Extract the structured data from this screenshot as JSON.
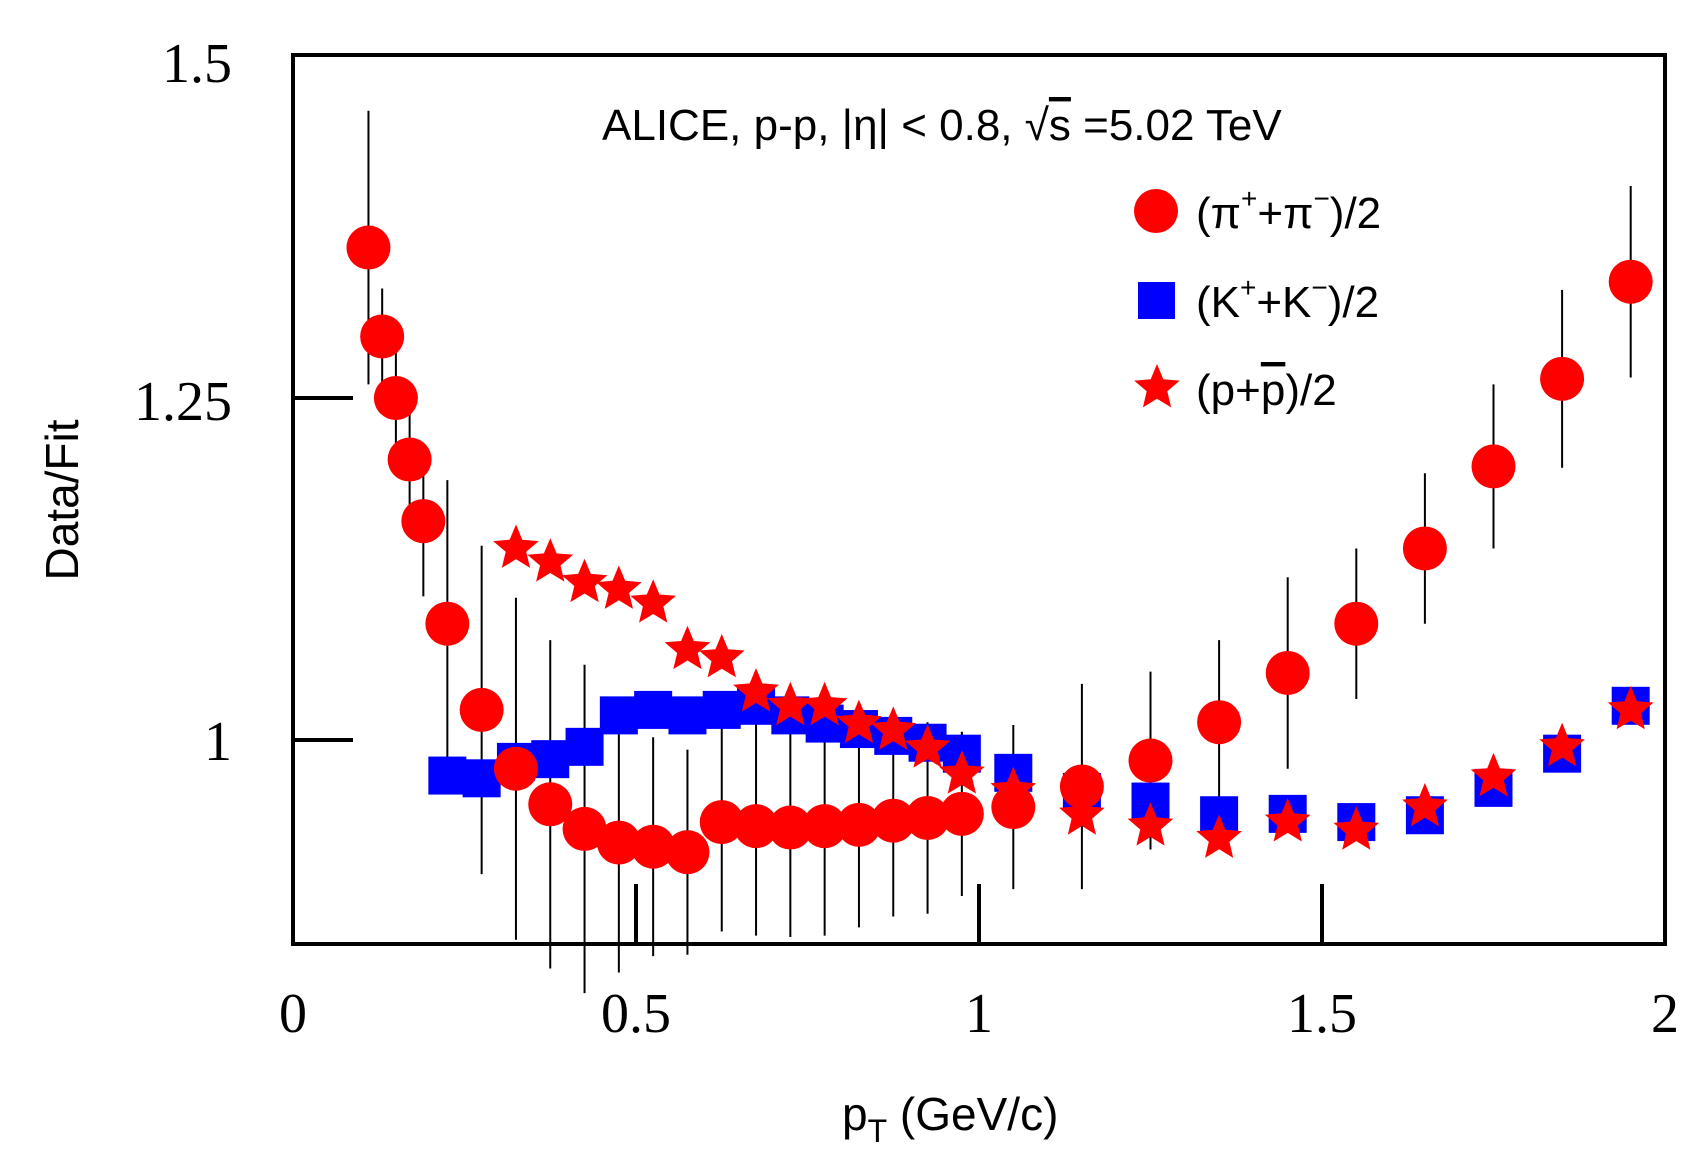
{
  "chart_data": {
    "type": "scatter",
    "title": "",
    "annotation": "ALICE, p-p, |η| < 0.8, √s =5.02 TeV",
    "annotation_parts": {
      "prefix": "ALICE, p-p, |η| < 0.8, ",
      "sqrt_symbol": "√",
      "sqrt_arg": "s",
      "suffix": " =5.02 TeV"
    },
    "xlabel": "p_T (GeV/c)",
    "xlabel_parts": {
      "main": "p",
      "sub": "T",
      "rest": " (GeV/c)"
    },
    "ylabel": "Data/Fit",
    "xlim": [
      0,
      2
    ],
    "ylim": [
      0.875,
      1.5
    ],
    "x_ticks": [
      0,
      0.5,
      1,
      1.5,
      2
    ],
    "x_tick_labels": [
      "0",
      "0.5",
      "1",
      "1.5",
      "2"
    ],
    "y_ticks": [
      1,
      1.25,
      1.5
    ],
    "y_tick_labels": [
      "1",
      "1.25",
      "1.5"
    ],
    "grid": false,
    "legend_position": "top-right",
    "colors": {
      "pion": "#ff0000",
      "kaon": "#0000ff",
      "proton": "#ff0000",
      "error_bar": "#000000"
    },
    "series": [
      {
        "name": "(π⁺+π⁻)/2",
        "legend_parts": {
          "open": "(π",
          "sup1": "+",
          "mid": "+π",
          "sup2": "−",
          "close": ")/2"
        },
        "marker": "circle",
        "color": "#ff0000",
        "x": [
          0.11,
          0.13,
          0.15,
          0.17,
          0.19,
          0.225,
          0.275,
          0.325,
          0.375,
          0.425,
          0.475,
          0.525,
          0.575,
          0.625,
          0.675,
          0.725,
          0.775,
          0.825,
          0.875,
          0.925,
          0.975,
          1.05,
          1.15,
          1.25,
          1.35,
          1.45,
          1.55,
          1.65,
          1.75,
          1.85,
          1.95
        ],
        "y": [
          1.36,
          1.295,
          1.25,
          1.205,
          1.16,
          1.085,
          1.022,
          0.979,
          0.953,
          0.935,
          0.925,
          0.922,
          0.918,
          0.94,
          0.937,
          0.936,
          0.937,
          0.938,
          0.941,
          0.943,
          0.946,
          0.951,
          0.966,
          0.985,
          1.013,
          1.049,
          1.085,
          1.14,
          1.2,
          1.264,
          1.335
        ],
        "err": [
          0.1,
          0.035,
          0.035,
          0.035,
          0.055,
          0.105,
          0.12,
          0.125,
          0.12,
          0.12,
          0.095,
          0.08,
          0.075,
          0.08,
          0.08,
          0.08,
          0.08,
          0.075,
          0.07,
          0.07,
          0.06,
          0.06,
          0.075,
          0.065,
          0.06,
          0.07,
          0.055,
          0.055,
          0.06,
          0.065,
          0.07
        ]
      },
      {
        "name": "(K⁺+K⁻)/2",
        "legend_parts": {
          "open": "(K",
          "sup1": "+",
          "mid": "+K",
          "sup2": "−",
          "close": ")/2"
        },
        "marker": "square",
        "color": "#0000ff",
        "x": [
          0.225,
          0.275,
          0.325,
          0.375,
          0.425,
          0.475,
          0.525,
          0.575,
          0.625,
          0.675,
          0.725,
          0.775,
          0.825,
          0.875,
          0.925,
          0.975,
          1.05,
          1.15,
          1.25,
          1.35,
          1.45,
          1.55,
          1.65,
          1.75,
          1.85,
          1.95
        ],
        "y": [
          0.974,
          0.972,
          0.984,
          0.986,
          0.995,
          1.018,
          1.022,
          1.018,
          1.022,
          1.025,
          1.018,
          1.012,
          1.008,
          1.003,
          0.998,
          0.99,
          0.976,
          0.962,
          0.955,
          0.945,
          0.946,
          0.94,
          0.945,
          0.965,
          0.99,
          1.025
        ]
      },
      {
        "name": "(p+p̄)/2",
        "legend_parts": {
          "open": "(p+",
          "bar_letter": "p",
          "close": ")/2"
        },
        "marker": "star",
        "color": "#ff0000",
        "x": [
          0.325,
          0.375,
          0.425,
          0.475,
          0.525,
          0.575,
          0.625,
          0.675,
          0.725,
          0.775,
          0.825,
          0.875,
          0.925,
          0.975,
          1.05,
          1.15,
          1.25,
          1.35,
          1.45,
          1.55,
          1.65,
          1.75,
          1.85,
          1.95
        ],
        "y": [
          1.14,
          1.13,
          1.115,
          1.11,
          1.1,
          1.066,
          1.06,
          1.035,
          1.025,
          1.025,
          1.012,
          1.007,
          0.994,
          0.975,
          0.963,
          0.945,
          0.937,
          0.928,
          0.94,
          0.934,
          0.951,
          0.973,
          0.995,
          1.022
        ]
      }
    ]
  }
}
